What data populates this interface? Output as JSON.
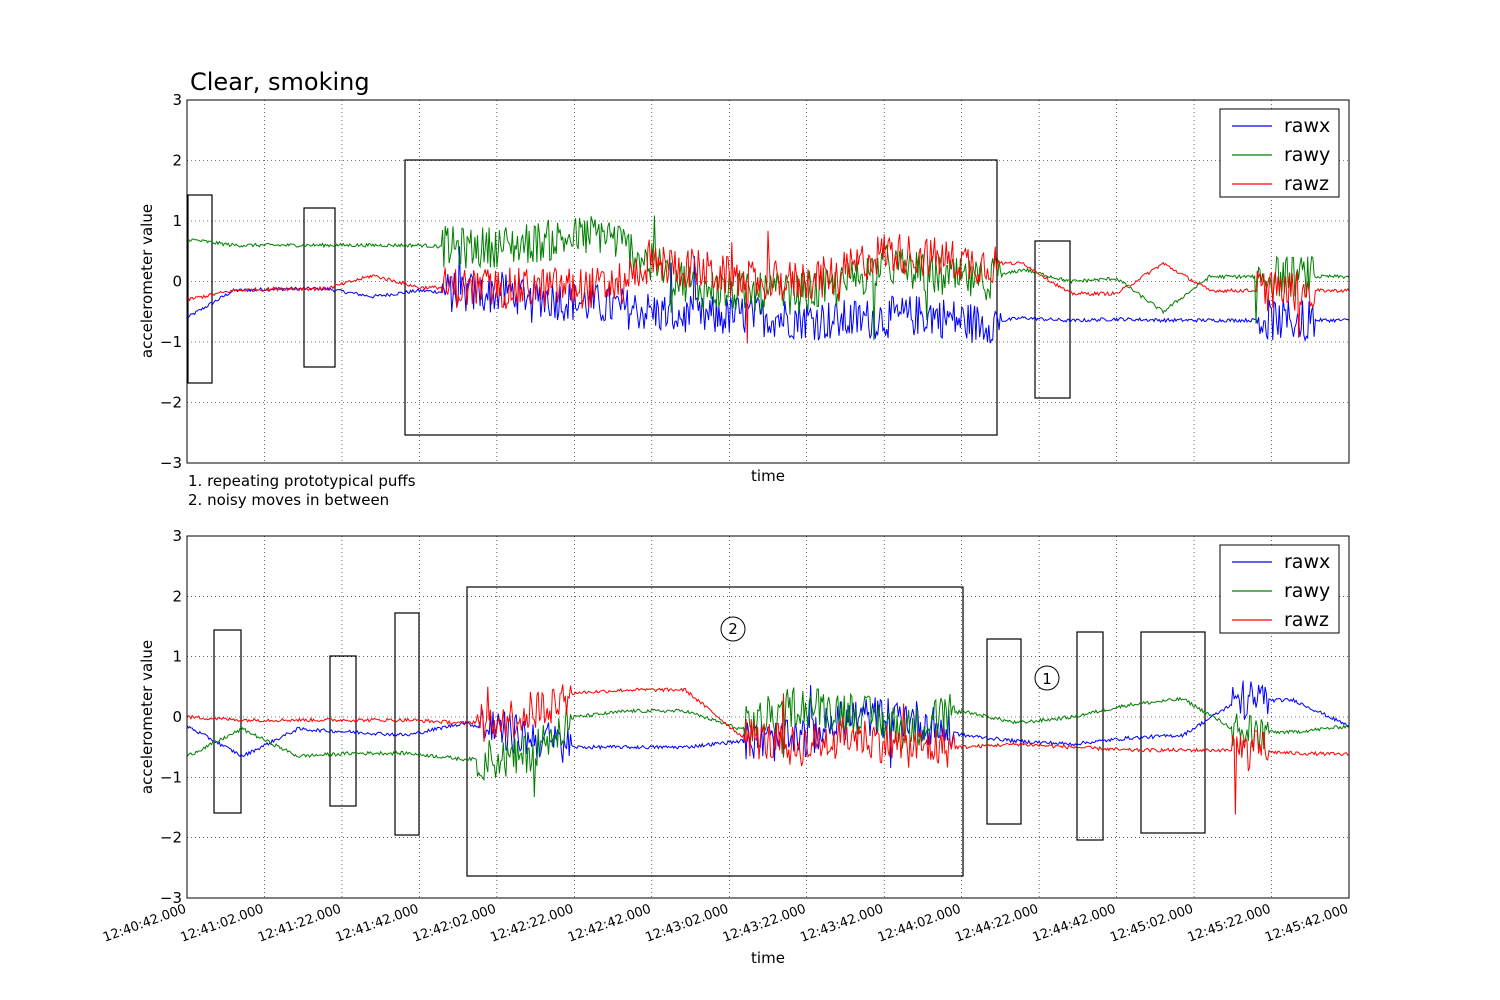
{
  "chart_data": [
    {
      "type": "line",
      "title": "Clear, smoking",
      "xlabel": "time",
      "ylabel": "accelerometer value",
      "ylim": [
        -3,
        3
      ],
      "yticks": [
        "−3",
        "−2",
        "−1",
        "0",
        "1",
        "2",
        "3"
      ],
      "xlim": [
        "12:40:42.000",
        "12:45:42.000"
      ],
      "grid": true,
      "legend_position": "top-right",
      "x_tick_labels_shown": false,
      "series": [
        {
          "name": "rawx",
          "color": "#0000ff",
          "values": [
            -0.6,
            -0.15,
            -0.12,
            -0.12,
            -0.25,
            -0.15,
            -0.2,
            -0.18,
            -0.3,
            -0.4,
            -0.5,
            -0.6,
            -0.55,
            -0.6,
            -0.65,
            -0.6,
            -0.55,
            -0.7,
            -0.6,
            -0.65,
            -0.62,
            -0.64,
            -0.64,
            -0.64,
            -0.64,
            -0.64
          ]
        },
        {
          "name": "rawy",
          "color": "#008000",
          "values": [
            0.7,
            0.6,
            0.6,
            0.6,
            0.6,
            0.6,
            0.55,
            0.6,
            0.7,
            0.8,
            0.3,
            -0.1,
            -0.2,
            -0.2,
            -0.1,
            0.3,
            0.1,
            0.0,
            0.2,
            0.0,
            0.05,
            -0.5,
            0.08,
            0.08,
            0.08,
            0.08
          ]
        },
        {
          "name": "rawz",
          "color": "#ff0000",
          "values": [
            -0.3,
            -0.15,
            -0.12,
            -0.12,
            0.1,
            -0.1,
            -0.1,
            -0.12,
            -0.1,
            -0.1,
            0.3,
            0.2,
            0.0,
            0.0,
            0.1,
            0.5,
            0.4,
            0.3,
            0.3,
            -0.2,
            -0.2,
            0.3,
            -0.15,
            -0.15,
            -0.15,
            -0.15
          ]
        }
      ],
      "annotations": [
        "1. repeating prototypical puffs",
        "2. noisy moves in between"
      ]
    },
    {
      "type": "line",
      "title": "",
      "xlabel": "time",
      "ylabel": "accelerometer value",
      "ylim": [
        -3,
        3
      ],
      "yticks": [
        "−3",
        "−2",
        "−1",
        "0",
        "1",
        "2",
        "3"
      ],
      "x_tick_labels": [
        "12:40:42.000",
        "12:41:02.000",
        "12:41:22.000",
        "12:41:42.000",
        "12:42:02.000",
        "12:42:22.000",
        "12:42:42.000",
        "12:43:02.000",
        "12:43:22.000",
        "12:43:42.000",
        "12:44:02.000",
        "12:44:22.000",
        "12:44:42.000",
        "12:45:02.000",
        "12:45:22.000",
        "12:45:42.000"
      ],
      "grid": true,
      "legend_position": "top-right",
      "series": [
        {
          "name": "rawx",
          "color": "#0000ff",
          "values": [
            -0.15,
            -0.65,
            -0.2,
            -0.25,
            -0.3,
            -0.1,
            -0.3,
            -0.5,
            -0.5,
            -0.5,
            -0.4,
            -0.4,
            0.0,
            0.0,
            -0.3,
            -0.4,
            -0.45,
            -0.35,
            -0.3,
            0.28,
            0.28,
            -0.15
          ]
        },
        {
          "name": "rawy",
          "color": "#008000",
          "values": [
            -0.65,
            -0.2,
            -0.65,
            -0.6,
            -0.6,
            -0.7,
            -0.7,
            0.0,
            0.1,
            0.1,
            -0.2,
            0.2,
            0.1,
            -0.2,
            0.1,
            -0.1,
            0.0,
            0.2,
            0.3,
            -0.25,
            -0.25,
            -0.15
          ]
        },
        {
          "name": "rawz",
          "color": "#ff0000",
          "values": [
            0.0,
            -0.05,
            -0.05,
            -0.05,
            -0.05,
            -0.1,
            0.0,
            0.4,
            0.45,
            0.45,
            -0.3,
            -0.5,
            -0.3,
            -0.5,
            -0.5,
            -0.45,
            -0.5,
            -0.55,
            -0.55,
            -0.55,
            -0.6,
            -0.62
          ]
        }
      ],
      "annotations": [
        "2",
        "1"
      ]
    }
  ]
}
